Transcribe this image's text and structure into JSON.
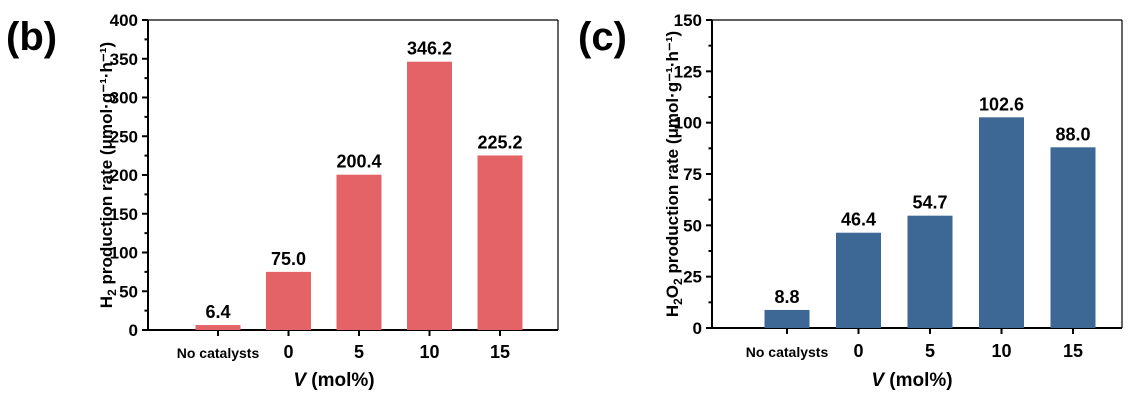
{
  "chart_data": [
    {
      "panel_label": "(b)",
      "type": "bar",
      "categories": [
        "No catalysts",
        "0",
        "5",
        "10",
        "15"
      ],
      "values": [
        6.4,
        75.0,
        200.4,
        346.2,
        225.2
      ],
      "value_labels": [
        "6.4",
        "75.0",
        "200.4",
        "346.2",
        "225.2"
      ],
      "xlabel_italic": "V",
      "xlabel_rest": " (mol%)",
      "ylabel_prefix": "H",
      "ylabel_sub1": "2",
      "ylabel_sub2": "",
      "ylabel_suffix": " production rate (μmol·g⁻¹·h⁻¹)",
      "ylim": [
        0,
        400
      ],
      "yticks": [
        "0",
        "50",
        "100",
        "150",
        "200",
        "250",
        "300",
        "350",
        "400"
      ],
      "color": "#e46366",
      "grid": false
    },
    {
      "panel_label": "(c)",
      "type": "bar",
      "categories": [
        "No catalysts",
        "0",
        "5",
        "10",
        "15"
      ],
      "values": [
        8.8,
        46.4,
        54.7,
        102.6,
        88.0
      ],
      "value_labels": [
        "8.8",
        "46.4",
        "54.7",
        "102.6",
        "88.0"
      ],
      "xlabel_italic": "V",
      "xlabel_rest": " (mol%)",
      "ylabel_prefix": "H",
      "ylabel_sub1": "2",
      "ylabel_mid": "O",
      "ylabel_sub2": "2",
      "ylabel_suffix": " production rate (μmol·g⁻¹·h⁻¹)",
      "ylim": [
        0,
        150
      ],
      "yticks": [
        "0",
        "25",
        "50",
        "75",
        "100",
        "125",
        "150"
      ],
      "color": "#3d6794",
      "grid": false
    }
  ]
}
